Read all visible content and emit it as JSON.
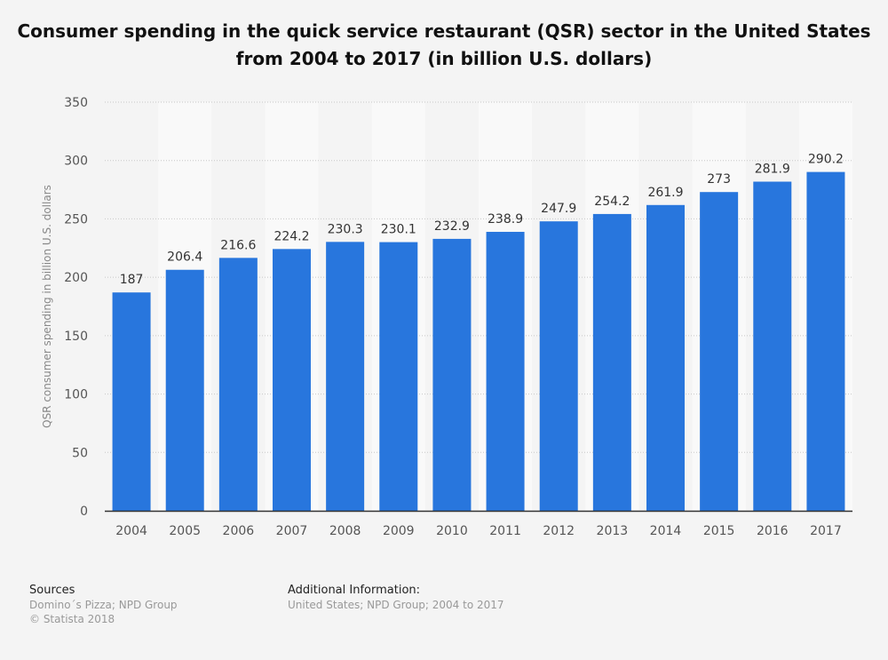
{
  "chart_data": {
    "type": "bar",
    "title": "Consumer spending in the quick service restaurant (QSR) sector in the United States from 2004 to 2017 (in billion U.S. dollars)",
    "xlabel": "",
    "ylabel": "QSR consumer spending in billion U.S. dollars",
    "ylim": [
      0,
      350
    ],
    "yticks": [
      0,
      50,
      100,
      150,
      200,
      250,
      300,
      350
    ],
    "grid": true,
    "categories": [
      "2004",
      "2005",
      "2006",
      "2007",
      "2008",
      "2009",
      "2010",
      "2011",
      "2012",
      "2013",
      "2014",
      "2015",
      "2016",
      "2017"
    ],
    "values": [
      187,
      206.4,
      216.6,
      224.2,
      230.3,
      230.1,
      232.9,
      238.9,
      247.9,
      254.2,
      261.9,
      273,
      281.9,
      290.2
    ],
    "data_labels": [
      "187",
      "206.4",
      "216.6",
      "224.2",
      "230.3",
      "230.1",
      "232.9",
      "238.9",
      "247.9",
      "254.2",
      "261.9",
      "273",
      "281.9",
      "290.2"
    ],
    "bar_color": "#2876dd"
  },
  "footer": {
    "sources_heading": "Sources",
    "sources_text": "Domino´s Pizza; NPD Group",
    "copyright": "© Statista 2018",
    "additional_heading": "Additional Information:",
    "additional_text": "United States; NPD Group; 2004 to 2017"
  }
}
